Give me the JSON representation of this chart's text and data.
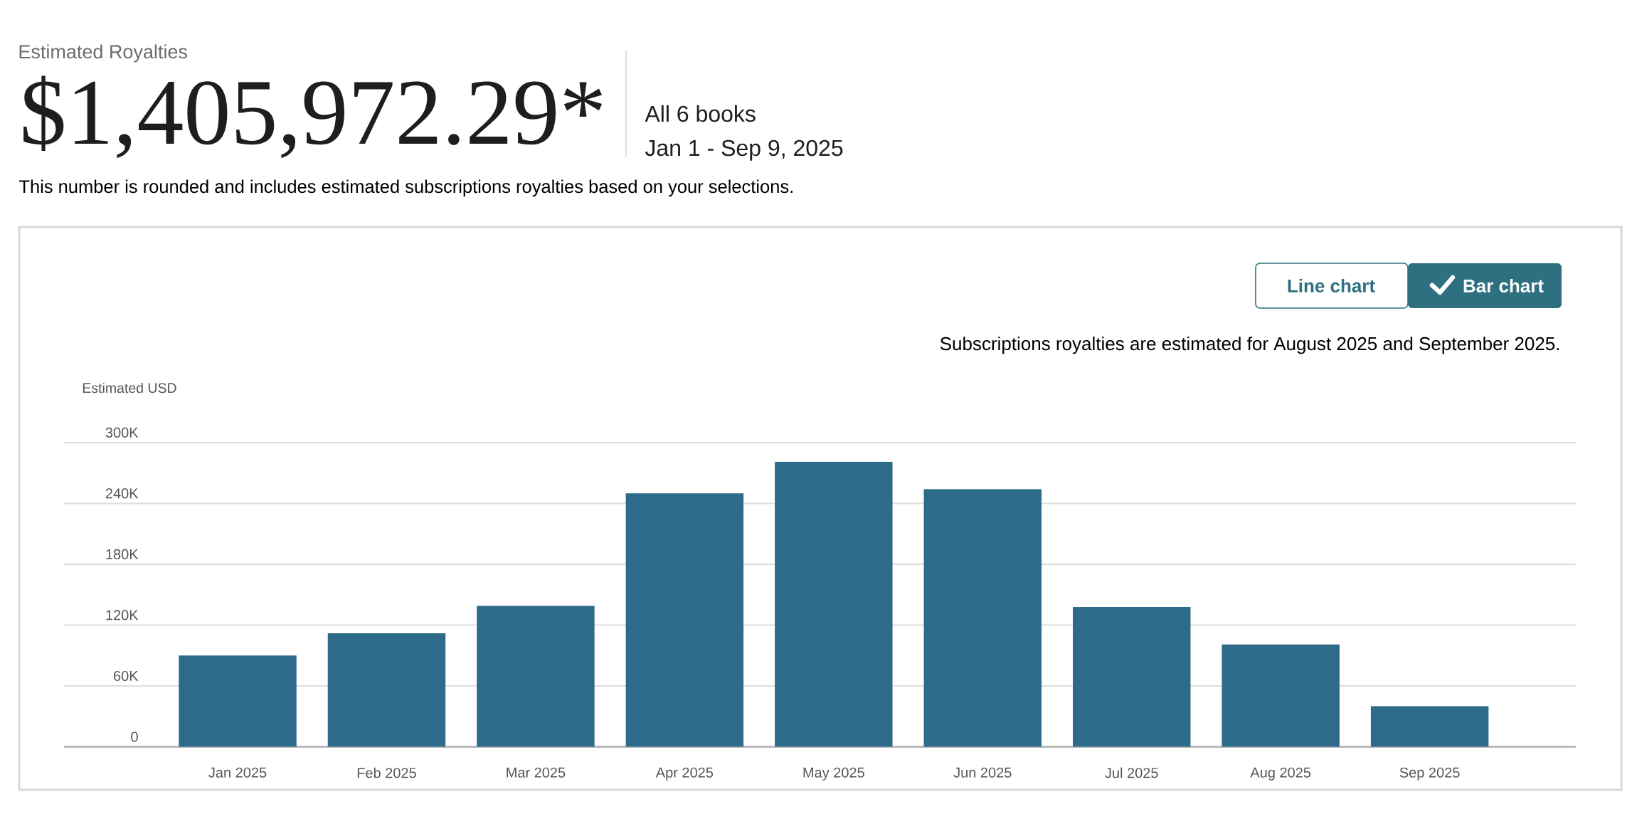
{
  "chart_data": {
    "type": "bar",
    "title": "Estimated Royalties",
    "subtitle": "$1,405,972.29*",
    "ylabel": "Estimated USD",
    "categories": [
      "Jan 2025",
      "Feb 2025",
      "Mar 2025",
      "Apr 2025",
      "May 2025",
      "Jun 2025",
      "Jul 2025",
      "Aug 2025",
      "Sep 2025"
    ],
    "values": [
      90000,
      112000,
      139000,
      250000,
      281000,
      254000,
      138000,
      101000,
      40000
    ],
    "color": "#2e6b8a",
    "ylim": [
      0,
      300000
    ],
    "yticks": [
      0,
      {
        "value": 60000,
        "label": "60K"
      },
      {
        "value": 120000,
        "label": "120K"
      },
      {
        "value": 180000,
        "label": "180K"
      },
      {
        "value": 240000,
        "label": "240K"
      },
      {
        "value": 300000,
        "label": "300K"
      }
    ],
    "grid": "y",
    "annotations": [
      "All 6 books",
      "Jan 1 - Sep 9, 2025",
      "This number is rounded and includes estimated subscriptions royalties based on your selections.",
      "Line chart",
      "Bar chart",
      "Subscriptions royalties are estimated for August 2025 and September 2025."
    ]
  }
}
